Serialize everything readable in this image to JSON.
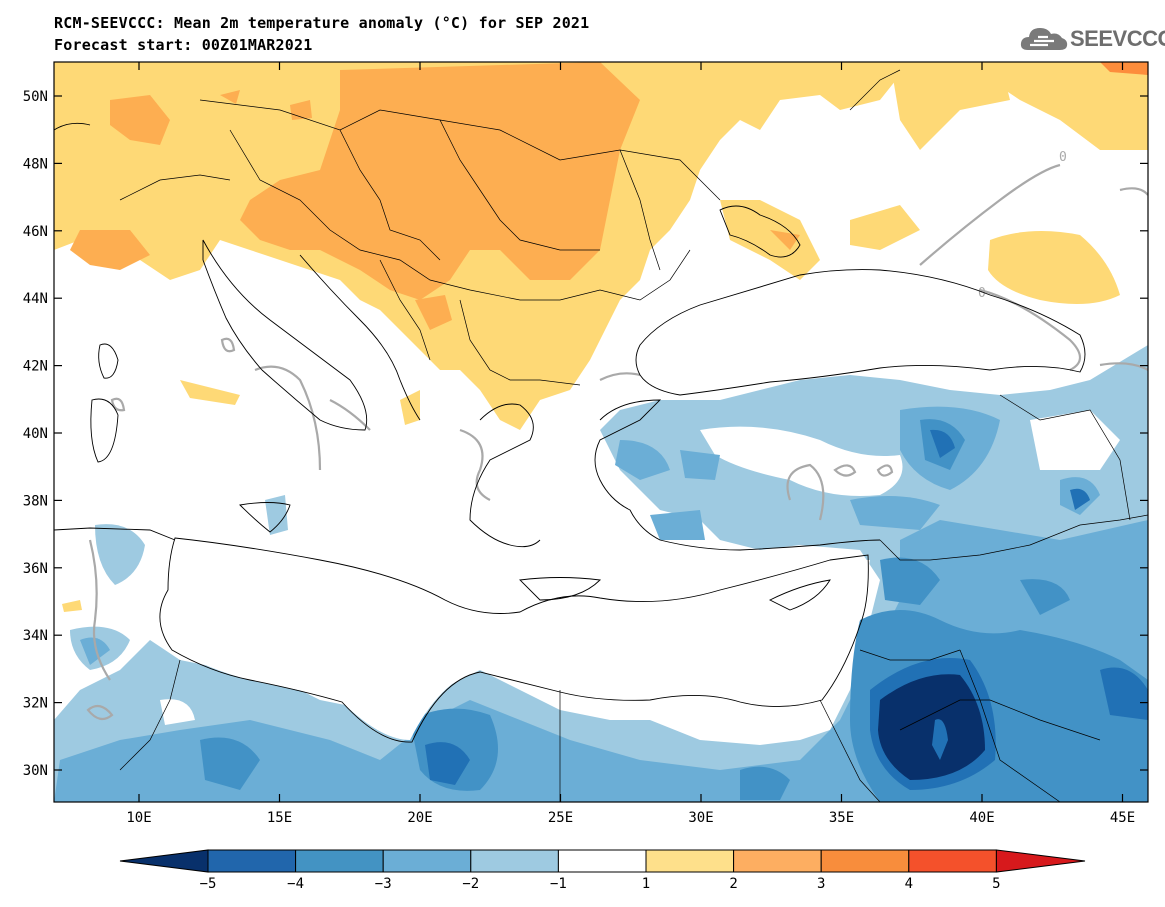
{
  "header": {
    "title_line1": "RCM-SEEVCCC: Mean 2m temperature anomaly (°C) for SEP 2021",
    "title_line2": "Forecast start: 00Z01MAR2021",
    "logo_text": "SEEVCCC",
    "logo_icon": "cloud-icon"
  },
  "map": {
    "lat_ticks": [
      "50N",
      "48N",
      "46N",
      "44N",
      "42N",
      "40N",
      "38N",
      "36N",
      "34N",
      "32N",
      "30N"
    ],
    "lon_ticks": [
      "10E",
      "15E",
      "20E",
      "25E",
      "30E",
      "35E",
      "40E",
      "45E"
    ],
    "contour_label": "0"
  },
  "colorbar": {
    "labels": [
      "−5",
      "−4",
      "−3",
      "−2",
      "−1",
      "1",
      "2",
      "3",
      "4",
      "5"
    ],
    "colors": [
      "#08306b",
      "#2166ac",
      "#4393c3",
      "#6baed6",
      "#9ecae1",
      "#ffffff",
      "#fee08b",
      "#fdae61",
      "#f88d3c",
      "#f4512b",
      "#d7191c"
    ]
  },
  "palette": {
    "pos1": "#fed976",
    "pos2": "#fdae51",
    "pos3": "#fd8d3c",
    "neg1": "#9ecae1",
    "neg2": "#6baed6",
    "neg3": "#4292c6",
    "neg4": "#2171b5",
    "neg5": "#08306b",
    "contour": "#a9a9a9"
  }
}
